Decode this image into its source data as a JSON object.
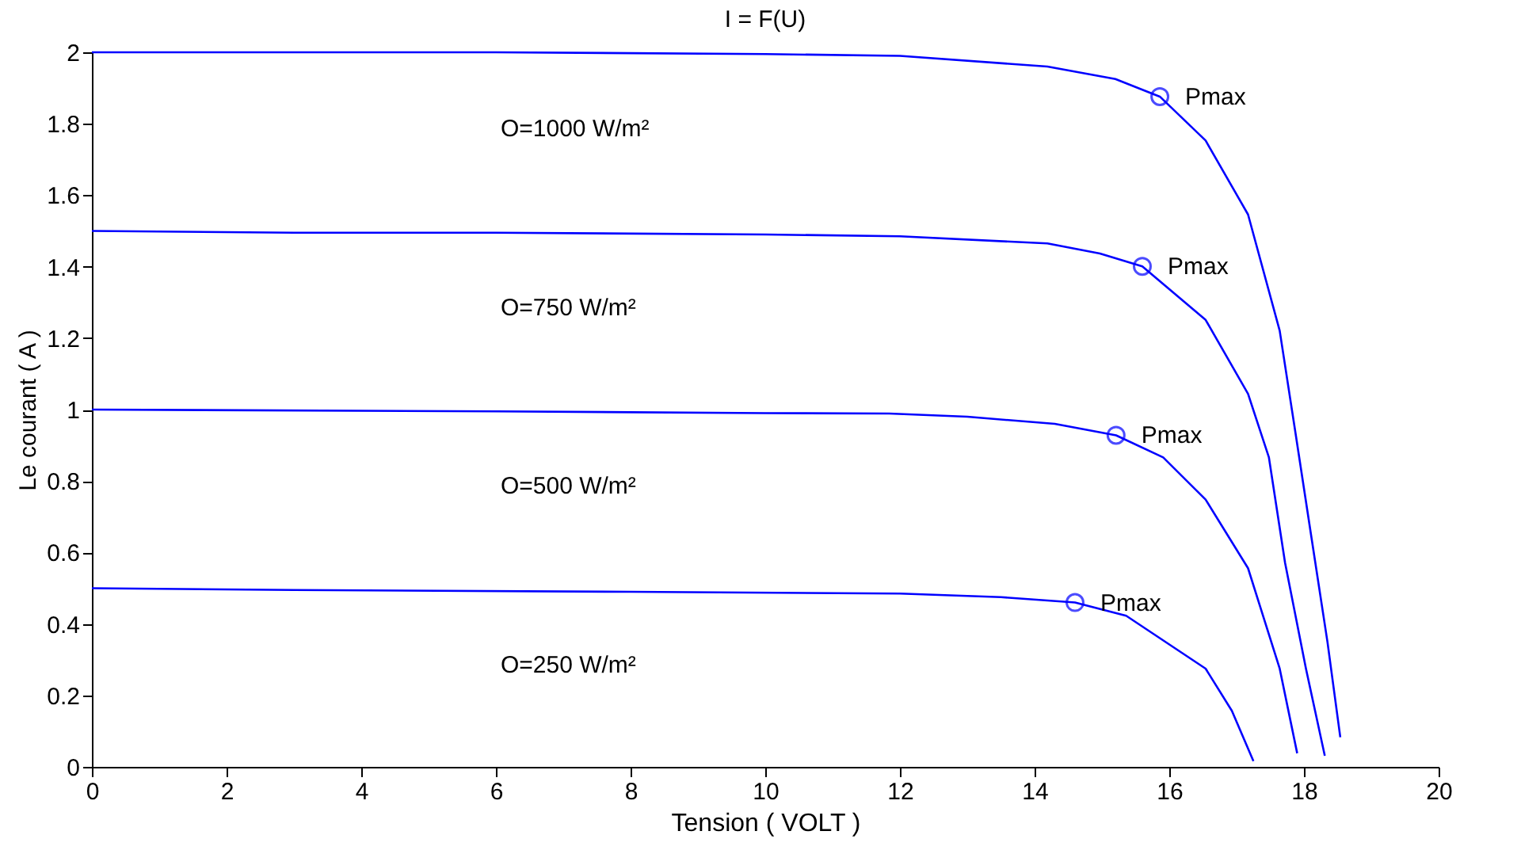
{
  "chart_data": {
    "type": "line",
    "title": "I = F(U)",
    "xlabel": "Tension ( VOLT )",
    "ylabel": "Le courant ( A )",
    "xlim": [
      0,
      20
    ],
    "xticks": [
      0,
      2,
      4,
      6,
      8,
      10,
      12,
      14,
      16,
      18,
      20
    ],
    "ylim": [
      0,
      2
    ],
    "yticks": [
      0,
      0.2,
      0.4,
      0.6,
      0.8,
      1,
      1.2,
      1.4,
      1.6,
      1.8,
      2
    ],
    "grid": false,
    "legend": false,
    "marker": "none",
    "line_style": "solid",
    "series": [
      {
        "color": "#0000ff",
        "x": [
          0,
          3,
          6,
          10,
          12,
          14.19,
          15.2,
          15.86,
          16.54,
          17.17,
          17.64,
          17.87,
          18.11,
          18.35,
          18.54
        ],
        "values": [
          2,
          2,
          2,
          1.995,
          1.99,
          1.96,
          1.925,
          1.876,
          1.753,
          1.546,
          1.221,
          0.94,
          0.644,
          0.349,
          0.083
        ]
      },
      {
        "color": "#0000ff",
        "x": [
          0,
          3,
          6,
          10,
          12,
          14.19,
          14.97,
          15.6,
          16.54,
          17.17,
          17.48,
          17.72,
          18.03,
          18.31
        ],
        "values": [
          1.5,
          1.495,
          1.495,
          1.49,
          1.485,
          1.465,
          1.437,
          1.401,
          1.251,
          1.044,
          0.866,
          0.571,
          0.275,
          0.031
        ]
      },
      {
        "color": "#0000ff",
        "x": [
          0,
          6,
          10,
          11.84,
          13,
          14.3,
          15.21,
          15.91,
          16.54,
          17.17,
          17.64,
          17.9
        ],
        "values": [
          1,
          0.995,
          0.99,
          0.989,
          0.98,
          0.96,
          0.928,
          0.866,
          0.748,
          0.556,
          0.275,
          0.038
        ]
      },
      {
        "color": "#0000ff",
        "x": [
          0,
          3,
          8,
          12,
          13.5,
          14.6,
          15.36,
          16.54,
          16.93,
          17.25
        ],
        "values": [
          0.5,
          0.495,
          0.49,
          0.485,
          0.475,
          0.46,
          0.423,
          0.275,
          0.157,
          0.016
        ]
      },
      {
        "type": "scatter",
        "marker": "circle",
        "color": "#0000ff",
        "x": [
          15.86,
          15.6,
          15.21,
          14.6
        ],
        "values": [
          1.876,
          1.401,
          0.928,
          0.46
        ]
      }
    ],
    "annotations": [
      {
        "text": "Pmax",
        "x": 15.86,
        "y": 1.876
      },
      {
        "text": "Pmax",
        "x": 15.6,
        "y": 1.401
      },
      {
        "text": "Pmax",
        "x": 15.21,
        "y": 0.928
      },
      {
        "text": "Pmax",
        "x": 14.6,
        "y": 0.46
      },
      "O=1000 W/m²",
      "O=750 W/m²",
      "O=500 W/m²",
      "O=250 W/m²"
    ]
  }
}
